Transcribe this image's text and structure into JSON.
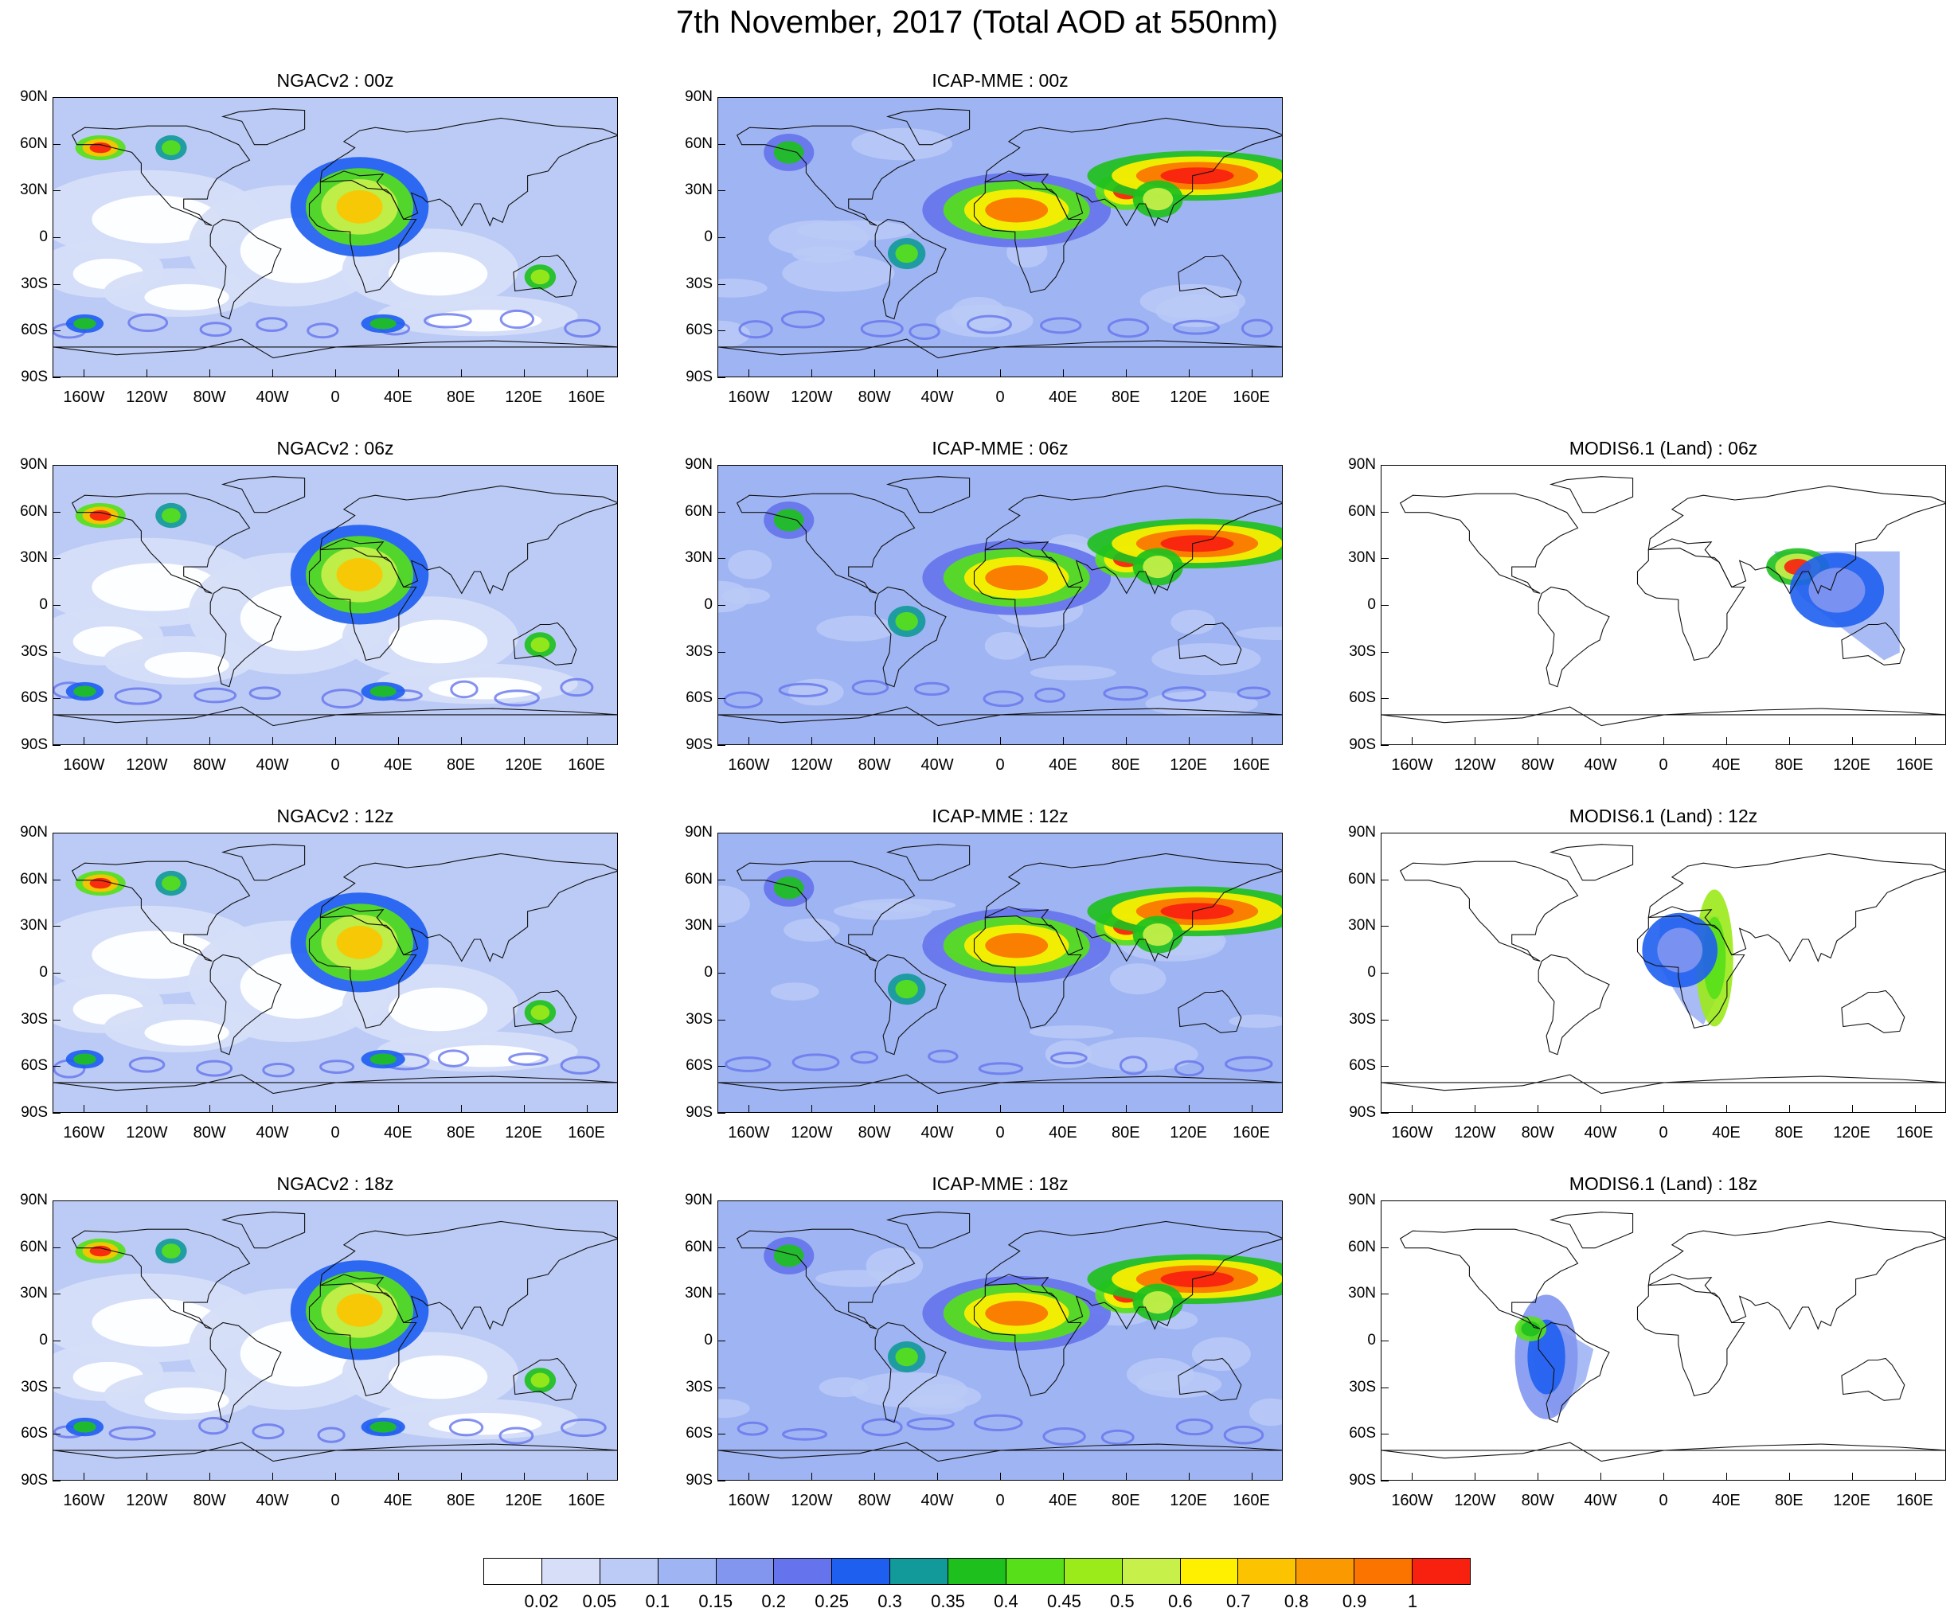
{
  "title": "7th November, 2017 (Total AOD at 550nm)",
  "latitude_labels": [
    "90N",
    "60N",
    "30N",
    "0",
    "30S",
    "60S",
    "90S"
  ],
  "longitude_labels": [
    "160W",
    "120W",
    "80W",
    "40W",
    "0",
    "40E",
    "80E",
    "120E",
    "160E"
  ],
  "panels": [
    {
      "id": "ngac-00",
      "title": "NGACv2 : 00z",
      "model": "NGACv2",
      "hour": "00z",
      "coverage": "global"
    },
    {
      "id": "icap-00",
      "title": "ICAP-MME : 00z",
      "model": "ICAP-MME",
      "hour": "00z",
      "coverage": "global"
    },
    {
      "id": "ngac-06",
      "title": "NGACv2 : 06z",
      "model": "NGACv2",
      "hour": "06z",
      "coverage": "global"
    },
    {
      "id": "icap-06",
      "title": "ICAP-MME : 06z",
      "model": "ICAP-MME",
      "hour": "06z",
      "coverage": "global"
    },
    {
      "id": "modis-06",
      "title": "MODIS6.1 (Land) : 06z",
      "model": "MODIS6.1 (Land)",
      "hour": "06z",
      "coverage": "swath"
    },
    {
      "id": "ngac-12",
      "title": "NGACv2 : 12z",
      "model": "NGACv2",
      "hour": "12z",
      "coverage": "global"
    },
    {
      "id": "icap-12",
      "title": "ICAP-MME : 12z",
      "model": "ICAP-MME",
      "hour": "12z",
      "coverage": "global"
    },
    {
      "id": "modis-12",
      "title": "MODIS6.1 (Land) : 12z",
      "model": "MODIS6.1 (Land)",
      "hour": "12z",
      "coverage": "swath"
    },
    {
      "id": "ngac-18",
      "title": "NGACv2 : 18z",
      "model": "NGACv2",
      "hour": "18z",
      "coverage": "global"
    },
    {
      "id": "icap-18",
      "title": "ICAP-MME : 18z",
      "model": "ICAP-MME",
      "hour": "18z",
      "coverage": "global"
    },
    {
      "id": "modis-18",
      "title": "MODIS6.1 (Land) : 18z",
      "model": "MODIS6.1 (Land)",
      "hour": "18z",
      "coverage": "swath"
    }
  ],
  "colorbar": {
    "labels": [
      "0.02",
      "0.05",
      "0.1",
      "0.15",
      "0.2",
      "0.25",
      "0.3",
      "0.35",
      "0.4",
      "0.45",
      "0.5",
      "0.6",
      "0.7",
      "0.8",
      "0.9",
      "1"
    ],
    "colors": [
      "#ffffff",
      "#d6def8",
      "#bccbf6",
      "#9fb4f3",
      "#8296ef",
      "#6574ec",
      "#1f5ff0",
      "#129a9a",
      "#1ec01e",
      "#57e01a",
      "#9bea1a",
      "#c8f04a",
      "#fff000",
      "#fcc400",
      "#fb9a00",
      "#fb7400",
      "#f8200e"
    ]
  }
}
